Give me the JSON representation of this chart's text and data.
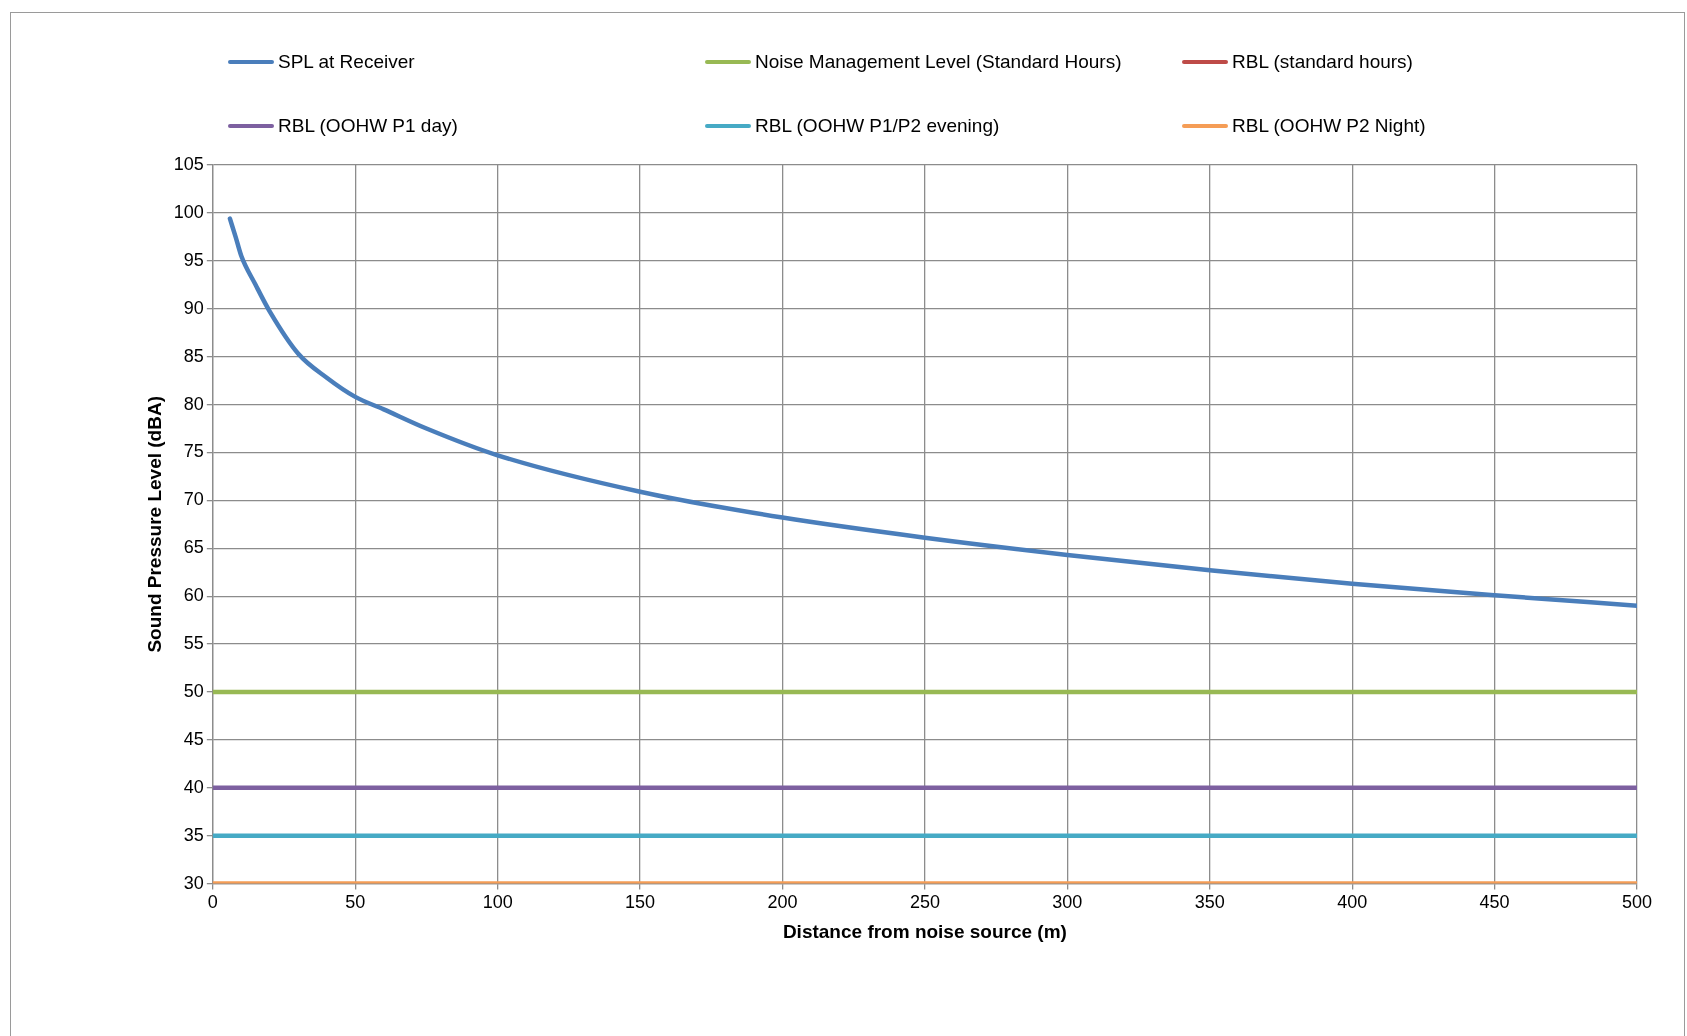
{
  "chart_data": {
    "type": "line",
    "xlabel": "Distance from noise source (m)",
    "ylabel": "Sound Pressure Level (dBA)",
    "xlim": [
      0,
      500
    ],
    "xticks": [
      0,
      50,
      100,
      150,
      200,
      250,
      300,
      350,
      400,
      450,
      500
    ],
    "ylim": [
      30,
      105
    ],
    "yticks": [
      30,
      35,
      40,
      45,
      50,
      55,
      60,
      65,
      70,
      75,
      80,
      85,
      90,
      95,
      100,
      105
    ],
    "grid": true,
    "legend": "top",
    "marker": "none",
    "line_style": "solid",
    "series": [
      {
        "name": "SPL at Receiver",
        "color": "#4a7ebb",
        "x": [
          6,
          8,
          10,
          15,
          20,
          30,
          40,
          50,
          60,
          75,
          100,
          150,
          200,
          250,
          300,
          350,
          400,
          450,
          500
        ],
        "values": [
          99.4,
          97.5,
          95.5,
          92.5,
          89.7,
          85.3,
          82.8,
          80.8,
          79.5,
          77.5,
          74.7,
          70.9,
          68.2,
          66.1,
          64.3,
          62.7,
          61.3,
          60.1,
          59.0
        ]
      },
      {
        "name": "Noise Management Level (Standard Hours)",
        "color": "#98b954",
        "x": [
          0,
          500
        ],
        "values": [
          50,
          50
        ]
      },
      {
        "name": "RBL (standard hours)",
        "color": "#be4b48",
        "values": [
          null
        ]
      },
      {
        "name": "RBL (OOHW P1 day)",
        "color": "#7d60a0",
        "x": [
          0,
          500
        ],
        "values": [
          40,
          40
        ]
      },
      {
        "name": "RBL (OOHW P1/P2 evening)",
        "color": "#46aac5",
        "x": [
          0,
          500
        ],
        "values": [
          35,
          35
        ]
      },
      {
        "name": "RBL (OOHW P2 Night)",
        "color": "#f59d56",
        "x": [
          0,
          500
        ],
        "values": [
          30,
          30
        ]
      }
    ]
  }
}
